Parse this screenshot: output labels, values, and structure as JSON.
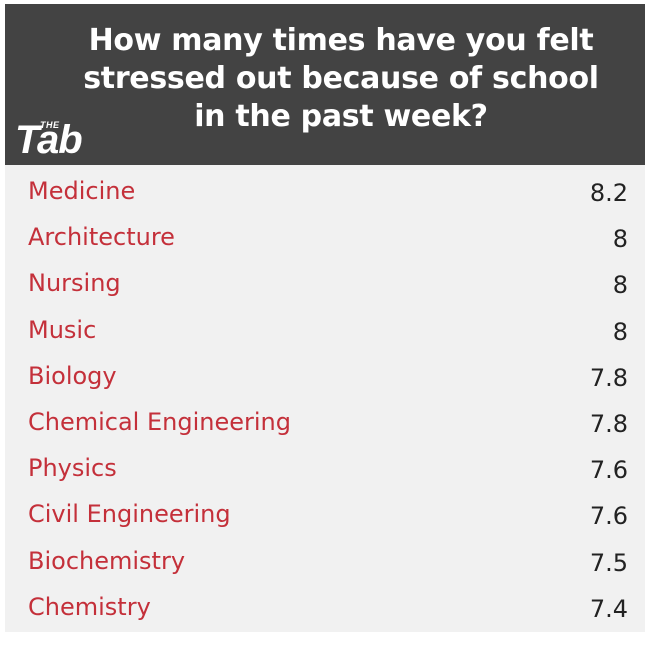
{
  "header": {
    "title": "How many times have you felt stressed out because of school in the past week?",
    "logo_small": "THE",
    "logo_main": "Tab"
  },
  "colors": {
    "header_bg": "#434343",
    "label": "#c4303a",
    "value": "#222222",
    "table_bg": "#f1f1f1"
  },
  "chart_data": {
    "type": "table",
    "title": "How many times have you felt stressed out because of school in the past week?",
    "categories": [
      "Medicine",
      "Architecture",
      "Nursing",
      "Music",
      "Biology",
      "Chemical Engineering",
      "Physics",
      "Civil Engineering",
      "Biochemistry",
      "Chemistry"
    ],
    "values": [
      "8.2",
      "8",
      "8",
      "8",
      "7.8",
      "7.8",
      "7.6",
      "7.6",
      "7.5",
      "7.4"
    ]
  }
}
